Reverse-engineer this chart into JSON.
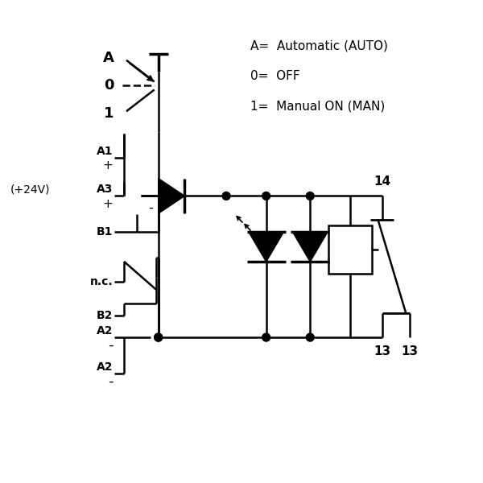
{
  "bg_color": "#ffffff",
  "line_color": "#000000",
  "text_color": "#000000",
  "figsize": [
    6.0,
    6.0
  ],
  "dpi": 100,
  "legend_lines": [
    "A=  Automatic (AUTO)",
    "0=  OFF",
    "1=  Manual ON (MAN)"
  ]
}
